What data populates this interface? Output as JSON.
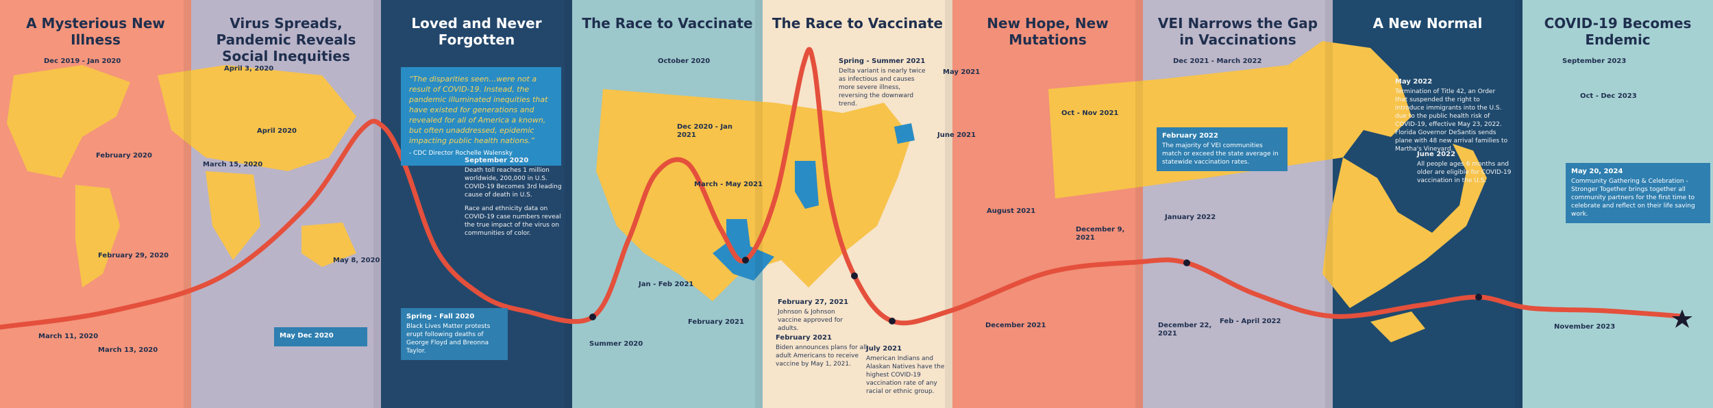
{
  "panels": [
    {
      "title": "A Mysterious New Illness",
      "events": [
        {
          "date": "Dec 2019 - Jan 2020"
        },
        {
          "date": "February 2020"
        },
        {
          "date": "February 29, 2020"
        },
        {
          "date": "March 11, 2020"
        },
        {
          "date": "March 13, 2020"
        }
      ]
    },
    {
      "title": "Virus Spreads, Pandemic Reveals Social Inequities",
      "events": [
        {
          "date": "April 3, 2020"
        },
        {
          "date": "March 15, 2020"
        },
        {
          "date": "April 2020"
        },
        {
          "date": "May 8, 2020"
        },
        {
          "date": "May Dec 2020"
        }
      ]
    },
    {
      "title": "Loved and Never Forgotten",
      "events": [
        {
          "text": "“The disparities seen…were not a result of COVID-19. Instead, the pandemic illuminated inequities that have existed for generations and revealed for all of America a known, but often unaddressed, epidemic impacting public health nations.”",
          "source": "- CDC Director Rochelle Walensky"
        },
        {
          "date": "Spring - Fall 2020",
          "text": "Black Lives Matter protests erupt following deaths of George Floyd and Breonna Taylor."
        },
        {
          "date": "September 2020",
          "text": "Death toll reaches 1 million worldwide, 200,000 in U.S. COVID-19 Becomes 3rd leading cause of death in U.S.",
          "text2": "Race and ethnicity data on COVID-19 case numbers reveal the true impact of the virus on communities of color."
        }
      ]
    },
    {
      "title": "The Race to Vaccinate",
      "events": [
        {
          "date": "October 2020"
        },
        {
          "date": "Dec 2020 - Jan 2021"
        },
        {
          "date": "March - May 2021"
        },
        {
          "date": "Jan - Feb 2021"
        },
        {
          "date": "February 2021"
        },
        {
          "date": "Summer 2020"
        }
      ]
    },
    {
      "title": "The Race to Vaccinate",
      "events": [
        {
          "date": "Spring - Summer 2021",
          "text": "Delta variant is nearly twice as infectious and causes more severe illness, reversing the downward trend."
        },
        {
          "date": "February 27, 2021",
          "text": "Johnson & Johnson vaccine approved for adults."
        },
        {
          "date": "February 2021",
          "text": "Biden announces plans for all adult Americans to receive vaccine by May 1, 2021."
        },
        {
          "date": "July 2021",
          "text": "American Indians and Alaskan Natives have the highest COVID-19 vaccination rate of any racial or ethnic group."
        }
      ]
    },
    {
      "title": "New Hope, New Mutations",
      "events": [
        {
          "date": "May 2021"
        },
        {
          "date": "June 2021"
        },
        {
          "date": "August 2021"
        },
        {
          "date": "December 2021"
        },
        {
          "date": "Oct - Nov 2021"
        },
        {
          "date": "December 9, 2021"
        }
      ]
    },
    {
      "title": "VEI Narrows the Gap in Vaccinations",
      "events": [
        {
          "date": "Dec 2021 - March 2022"
        },
        {
          "date": "February 2022",
          "text": "The majority of VEI communities match or exceed the state average in statewide vaccination rates."
        },
        {
          "date": "January 2022"
        },
        {
          "date": "December 22, 2021"
        },
        {
          "date": "Feb - April 2022"
        }
      ]
    },
    {
      "title": "A New Normal",
      "events": [
        {
          "date": "May 2022",
          "text": "Termination of Title 42, an Order that suspended the right to introduce immigrants into the U.S. due to the public health risk of COVID-19, effective May 23, 2022. Florida Governor DeSantis sends plane with 48 new arrival families to Martha's Vineyard."
        },
        {
          "date": "June 2022",
          "text": "All people ages 6 months and older are eligible for COVID-19 vaccination in the U.S."
        }
      ]
    },
    {
      "title": "COVID-19 Becomes Endemic",
      "events": [
        {
          "date": "September 2023"
        },
        {
          "date": "Oct - Dec 2023"
        },
        {
          "date": "May 20, 2024",
          "text": "Community Gathering & Celebration - Stronger Together brings together all community partners for the first time to celebrate and reflect on their life saving work."
        },
        {
          "date": "November 2023"
        }
      ]
    }
  ]
}
